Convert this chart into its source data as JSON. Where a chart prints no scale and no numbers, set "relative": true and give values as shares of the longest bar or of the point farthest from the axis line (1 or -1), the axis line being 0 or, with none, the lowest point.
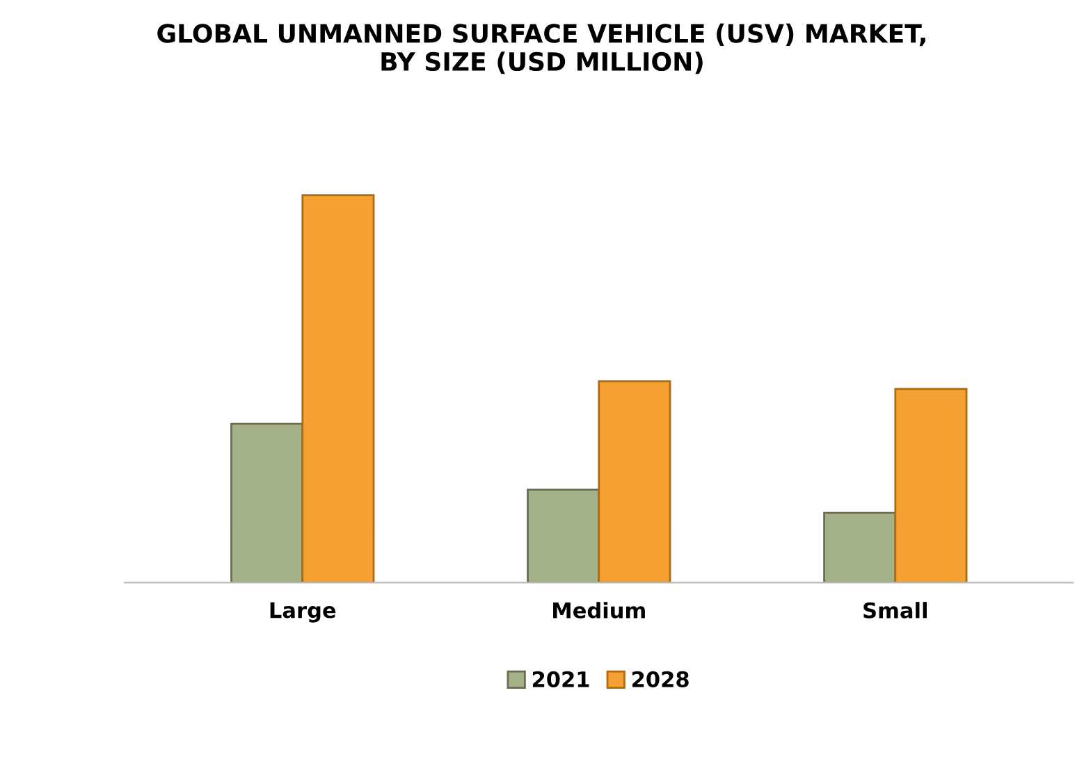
{
  "chart_data": {
    "type": "bar",
    "title": "GLOBAL UNMANNED SURFACE VEHICLE (USV) MARKET,\nBY SIZE (USD MILLION)",
    "relative": true,
    "categories": [
      "Large",
      "Medium",
      "Small"
    ],
    "series": [
      {
        "name": "2021",
        "color": "#a4b28a",
        "values": [
          0.41,
          0.24,
          0.18
        ]
      },
      {
        "name": "2028",
        "color": "#f5a032",
        "values": [
          1,
          0.52,
          0.5
        ]
      }
    ],
    "legend": "bottom",
    "grid": false
  }
}
